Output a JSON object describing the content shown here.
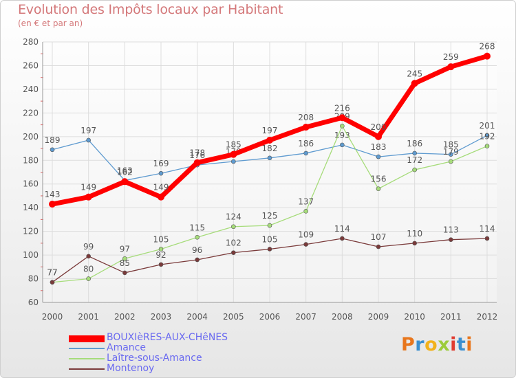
{
  "header": {
    "title": "Evolution des Impôts locaux par Habitant",
    "subtitle": "(en € et par an)"
  },
  "logo": {
    "text": "Proxiti",
    "colors": [
      "#e8761c",
      "#3a8fd0",
      "#f2b21c",
      "#9ccb3b",
      "#e03c31",
      "#3a8fd0",
      "#e8761c"
    ]
  },
  "chart_data": {
    "type": "line",
    "title": "Evolution des Impôts locaux par Habitant",
    "subtitle": "(en € et par an)",
    "xlabel": "",
    "ylabel": "",
    "ylim": [
      60,
      280
    ],
    "yticks": [
      60,
      80,
      100,
      120,
      140,
      160,
      180,
      200,
      220,
      240,
      260,
      280
    ],
    "grid": true,
    "legend_position": "bottom-left",
    "x": [
      2000,
      2001,
      2002,
      2003,
      2004,
      2005,
      2006,
      2007,
      2008,
      2009,
      2010,
      2011,
      2012
    ],
    "series": [
      {
        "name": "Amance",
        "color": "#5f9bd0",
        "width": 1.3,
        "values": [
          189,
          197,
          163,
          169,
          176,
          179,
          182,
          186,
          193,
          183,
          186,
          185,
          201
        ],
        "labels": [
          "189",
          "197",
          "163",
          "169",
          "176",
          "179",
          "182",
          "186",
          "193",
          "183",
          "186",
          "185",
          "201"
        ]
      },
      {
        "name": "Laître-sous-Amance",
        "color": "#a6dc7a",
        "width": 1.3,
        "values": [
          77,
          80,
          97,
          105,
          115,
          124,
          125,
          137,
          209,
          156,
          172,
          179,
          192
        ],
        "labels": [
          "77",
          "80",
          "97",
          "105",
          "115",
          "124",
          "125",
          "137",
          "209",
          "156",
          "172",
          "179",
          "192"
        ]
      },
      {
        "name": "Montenoy",
        "color": "#7a3a3a",
        "width": 1.3,
        "values": [
          77,
          99,
          85,
          92,
          96,
          102,
          105,
          109,
          114,
          107,
          110,
          113,
          114
        ],
        "labels": [
          "77",
          "99",
          "85",
          "92",
          "96",
          "102",
          "105",
          "109",
          "114",
          "107",
          "110",
          "113",
          "114"
        ]
      },
      {
        "name": "BOUXIèRES-AUX-CHêNES",
        "color": "#ff0000",
        "width": 7,
        "values": [
          143,
          149,
          162,
          149,
          178,
          185,
          197,
          208,
          216,
          200,
          245,
          259,
          268
        ],
        "labels": [
          "143",
          "149",
          "162",
          "149",
          "178",
          "185",
          "197",
          "208",
          "216",
          "200",
          "245",
          "259",
          "268"
        ]
      }
    ],
    "legend": [
      {
        "name": "BOUXIèRES-AUX-CHêNES",
        "color": "#ff0000"
      },
      {
        "name": "Amance",
        "color": "#5f9bd0"
      },
      {
        "name": "Laître-sous-Amance",
        "color": "#a6dc7a"
      },
      {
        "name": "Montenoy",
        "color": "#7a3a3a"
      }
    ]
  }
}
